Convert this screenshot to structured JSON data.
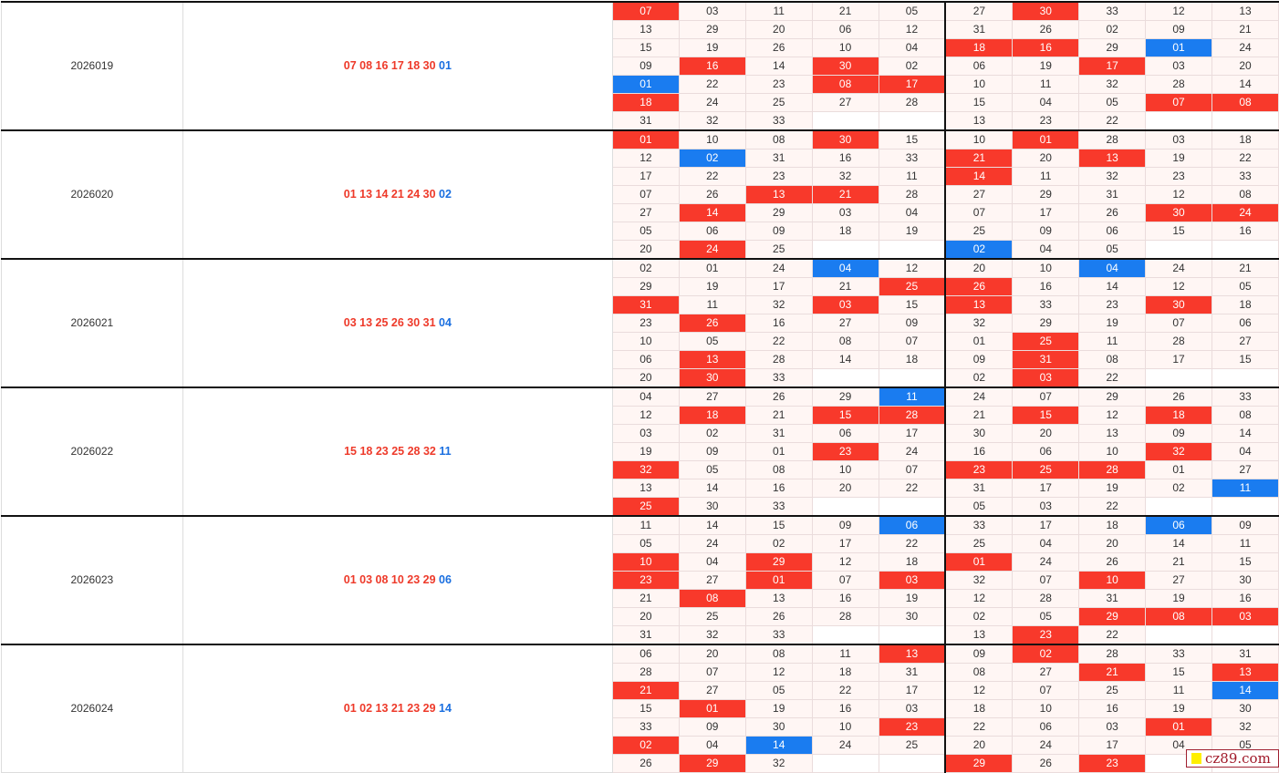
{
  "watermark": "cz89.com",
  "colors": {
    "red": "#f8392b",
    "blue": "#1a7cf0"
  },
  "groups": [
    {
      "period": "2026019",
      "red": "07 08 16 17 18 30",
      "blue": "01",
      "rows": [
        [
          "07",
          "03",
          "11",
          "21",
          "05",
          "27",
          "30",
          "33",
          "12",
          "13"
        ],
        [
          "13",
          "29",
          "20",
          "06",
          "12",
          "31",
          "26",
          "02",
          "09",
          "21"
        ],
        [
          "15",
          "19",
          "26",
          "10",
          "04",
          "18",
          "16",
          "29",
          "01",
          "24"
        ],
        [
          "09",
          "16",
          "14",
          "30",
          "02",
          "06",
          "19",
          "17",
          "03",
          "20"
        ],
        [
          "01",
          "22",
          "23",
          "08",
          "17",
          "10",
          "11",
          "32",
          "28",
          "14"
        ],
        [
          "18",
          "24",
          "25",
          "27",
          "28",
          "15",
          "04",
          "05",
          "07",
          "08"
        ],
        [
          "31",
          "32",
          "33",
          "",
          "",
          "13",
          "23",
          "22",
          "",
          ""
        ]
      ],
      "marks": [
        "r.....r...",
        "..........",
        ".....rr.b.",
        ".r.r...r..",
        "b..rr.....",
        "r.......rr",
        ".........."
      ]
    },
    {
      "period": "2026020",
      "red": "01 13 14 21 24 30",
      "blue": "02",
      "rows": [
        [
          "01",
          "10",
          "08",
          "30",
          "15",
          "10",
          "01",
          "28",
          "03",
          "18"
        ],
        [
          "12",
          "02",
          "31",
          "16",
          "33",
          "21",
          "20",
          "13",
          "19",
          "22"
        ],
        [
          "17",
          "22",
          "23",
          "32",
          "11",
          "14",
          "11",
          "32",
          "23",
          "33"
        ],
        [
          "07",
          "26",
          "13",
          "21",
          "28",
          "27",
          "29",
          "31",
          "12",
          "08"
        ],
        [
          "27",
          "14",
          "29",
          "03",
          "04",
          "07",
          "17",
          "26",
          "30",
          "24"
        ],
        [
          "05",
          "06",
          "09",
          "18",
          "19",
          "25",
          "09",
          "06",
          "15",
          "16"
        ],
        [
          "20",
          "24",
          "25",
          "",
          "",
          "02",
          "04",
          "05",
          "",
          ""
        ]
      ],
      "marks": [
        "r..r..r...",
        ".b...r.r..",
        ".....r....",
        "..rr......",
        ".r......rr",
        "..........",
        ".r...b...."
      ]
    },
    {
      "period": "2026021",
      "red": "03 13 25 26 30 31",
      "blue": "04",
      "rows": [
        [
          "02",
          "01",
          "24",
          "04",
          "12",
          "20",
          "10",
          "04",
          "24",
          "21"
        ],
        [
          "29",
          "19",
          "17",
          "21",
          "25",
          "26",
          "16",
          "14",
          "12",
          "05"
        ],
        [
          "31",
          "11",
          "32",
          "03",
          "15",
          "13",
          "33",
          "23",
          "30",
          "18"
        ],
        [
          "23",
          "26",
          "16",
          "27",
          "09",
          "32",
          "29",
          "19",
          "07",
          "06"
        ],
        [
          "10",
          "05",
          "22",
          "08",
          "07",
          "01",
          "25",
          "11",
          "28",
          "27"
        ],
        [
          "06",
          "13",
          "28",
          "14",
          "18",
          "09",
          "31",
          "08",
          "17",
          "15"
        ],
        [
          "20",
          "30",
          "33",
          "",
          "",
          "02",
          "03",
          "22",
          "",
          ""
        ]
      ],
      "marks": [
        "...b...b..",
        "....rr....",
        "r..r.r..r.",
        ".r........",
        "......r...",
        ".r....r...",
        ".r....r..."
      ]
    },
    {
      "period": "2026022",
      "red": "15 18 23 25 28 32",
      "blue": "11",
      "rows": [
        [
          "04",
          "27",
          "26",
          "29",
          "11",
          "24",
          "07",
          "29",
          "26",
          "33"
        ],
        [
          "12",
          "18",
          "21",
          "15",
          "28",
          "21",
          "15",
          "12",
          "18",
          "08"
        ],
        [
          "03",
          "02",
          "31",
          "06",
          "17",
          "30",
          "20",
          "13",
          "09",
          "14"
        ],
        [
          "19",
          "09",
          "01",
          "23",
          "24",
          "16",
          "06",
          "10",
          "32",
          "04"
        ],
        [
          "32",
          "05",
          "08",
          "10",
          "07",
          "23",
          "25",
          "28",
          "01",
          "27"
        ],
        [
          "13",
          "14",
          "16",
          "20",
          "22",
          "31",
          "17",
          "19",
          "02",
          "11"
        ],
        [
          "25",
          "30",
          "33",
          "",
          "",
          "05",
          "03",
          "22",
          "",
          ""
        ]
      ],
      "marks": [
        "....b.....",
        ".r.rr.r.r.",
        "..........",
        "...r....r.",
        "r....rrr..",
        ".........b",
        "r........."
      ]
    },
    {
      "period": "2026023",
      "red": "01 03 08 10 23 29",
      "blue": "06",
      "rows": [
        [
          "11",
          "14",
          "15",
          "09",
          "06",
          "33",
          "17",
          "18",
          "06",
          "09"
        ],
        [
          "05",
          "24",
          "02",
          "17",
          "22",
          "25",
          "04",
          "20",
          "14",
          "11"
        ],
        [
          "10",
          "04",
          "29",
          "12",
          "18",
          "01",
          "24",
          "26",
          "21",
          "15"
        ],
        [
          "23",
          "27",
          "01",
          "07",
          "03",
          "32",
          "07",
          "10",
          "27",
          "30"
        ],
        [
          "21",
          "08",
          "13",
          "16",
          "19",
          "12",
          "28",
          "31",
          "19",
          "16"
        ],
        [
          "20",
          "25",
          "26",
          "28",
          "30",
          "02",
          "05",
          "29",
          "08",
          "03"
        ],
        [
          "31",
          "32",
          "33",
          "",
          "",
          "13",
          "23",
          "22",
          "",
          ""
        ]
      ],
      "marks": [
        "....b...b.",
        "..........",
        "r.r..r....",
        "r.r.r..r..",
        ".r........",
        ".......rrr",
        "......r..."
      ]
    },
    {
      "period": "2026024",
      "red": "01 02 13 21 23 29",
      "blue": "14",
      "rows": [
        [
          "06",
          "20",
          "08",
          "11",
          "13",
          "09",
          "02",
          "28",
          "33",
          "31"
        ],
        [
          "28",
          "07",
          "12",
          "18",
          "31",
          "08",
          "27",
          "21",
          "15",
          "13"
        ],
        [
          "21",
          "27",
          "05",
          "22",
          "17",
          "12",
          "07",
          "25",
          "11",
          "14"
        ],
        [
          "15",
          "01",
          "19",
          "16",
          "03",
          "18",
          "10",
          "16",
          "19",
          "30"
        ],
        [
          "33",
          "09",
          "30",
          "10",
          "23",
          "22",
          "06",
          "03",
          "01",
          "32"
        ],
        [
          "02",
          "04",
          "14",
          "24",
          "25",
          "20",
          "24",
          "17",
          "04",
          "05"
        ],
        [
          "26",
          "29",
          "32",
          "",
          "",
          "29",
          "26",
          "23",
          "",
          ""
        ]
      ],
      "marks": [
        "....r.r...",
        ".......r.r",
        "r........b",
        ".r........",
        "....r...r.",
        "r.b.......",
        ".r...r.r.."
      ]
    }
  ]
}
